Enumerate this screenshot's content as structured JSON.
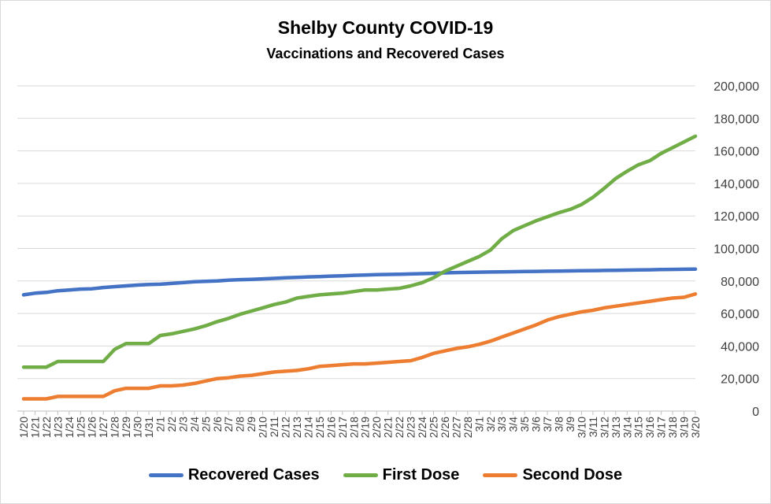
{
  "chart_data": {
    "type": "line",
    "title": "Shelby County COVID-19",
    "subtitle": "Vaccinations and Recovered Cases",
    "xlabel": "",
    "ylabel": "",
    "ylim": [
      0,
      200000
    ],
    "yticks": [
      0,
      20000,
      40000,
      60000,
      80000,
      100000,
      120000,
      140000,
      160000,
      180000,
      200000
    ],
    "ytick_labels": [
      "0",
      "20,000",
      "40,000",
      "60,000",
      "80,000",
      "100,000",
      "120,000",
      "140,000",
      "160,000",
      "180,000",
      "200,000"
    ],
    "yaxis_side": "right",
    "grid": true,
    "legend_position": "bottom",
    "categories": [
      "1/20",
      "1/21",
      "1/22",
      "1/23",
      "1/24",
      "1/25",
      "1/26",
      "1/27",
      "1/28",
      "1/29",
      "1/30",
      "1/31",
      "2/1",
      "2/2",
      "2/3",
      "2/4",
      "2/5",
      "2/6",
      "2/7",
      "2/8",
      "2/9",
      "2/10",
      "2/11",
      "2/12",
      "2/13",
      "2/14",
      "2/15",
      "2/16",
      "2/17",
      "2/18",
      "2/19",
      "2/20",
      "2/21",
      "2/22",
      "2/23",
      "2/24",
      "2/25",
      "2/26",
      "2/27",
      "2/28",
      "3/1",
      "3/2",
      "3/3",
      "3/4",
      "3/5",
      "3/6",
      "3/7",
      "3/8",
      "3/9",
      "3/10",
      "3/11",
      "3/12",
      "3/13",
      "3/14",
      "3/15",
      "3/16",
      "3/17",
      "3/18",
      "3/19",
      "3/20"
    ],
    "series": [
      {
        "name": "Recovered Cases",
        "color": "#4472c4",
        "values": [
          71500,
          72500,
          73000,
          74000,
          74500,
          75000,
          75200,
          76000,
          76500,
          77000,
          77500,
          77800,
          78000,
          78500,
          79000,
          79500,
          79800,
          80000,
          80500,
          80800,
          81000,
          81300,
          81600,
          82000,
          82200,
          82500,
          82700,
          83000,
          83200,
          83500,
          83700,
          83900,
          84000,
          84100,
          84300,
          84500,
          84700,
          85000,
          85200,
          85300,
          85400,
          85500,
          85600,
          85700,
          85800,
          85900,
          86000,
          86100,
          86200,
          86300,
          86400,
          86500,
          86600,
          86700,
          86800,
          86900,
          87000,
          87100,
          87200,
          87300
        ]
      },
      {
        "name": "First Dose",
        "color": "#70ad47",
        "values": [
          27000,
          27000,
          27000,
          30500,
          30500,
          30500,
          30500,
          30500,
          38000,
          41500,
          41500,
          41500,
          46500,
          47500,
          49000,
          50500,
          52500,
          55000,
          57000,
          59500,
          61500,
          63500,
          65500,
          67000,
          69500,
          70500,
          71500,
          72000,
          72500,
          73500,
          74500,
          74500,
          75000,
          75500,
          77000,
          79000,
          82000,
          86000,
          89000,
          92000,
          95000,
          99000,
          106000,
          111000,
          114000,
          117000,
          119500,
          122000,
          124000,
          127000,
          131500,
          137000,
          143000,
          147500,
          151500,
          154000,
          158500,
          162000,
          165500,
          169000
        ]
      },
      {
        "name": "Second Dose",
        "color": "#ed7d31",
        "values": [
          7500,
          7500,
          7500,
          9000,
          9000,
          9000,
          9000,
          9000,
          12500,
          14000,
          14000,
          14000,
          15500,
          15500,
          16000,
          17000,
          18500,
          20000,
          20500,
          21500,
          22000,
          23000,
          24000,
          24500,
          25000,
          26000,
          27500,
          28000,
          28500,
          29000,
          29000,
          29500,
          30000,
          30500,
          31000,
          33000,
          35500,
          37000,
          38500,
          39500,
          41000,
          43000,
          45500,
          48000,
          50500,
          53000,
          56000,
          58000,
          59500,
          61000,
          62000,
          63500,
          64500,
          65500,
          66500,
          67500,
          68500,
          69500,
          70000,
          72000
        ]
      }
    ]
  }
}
